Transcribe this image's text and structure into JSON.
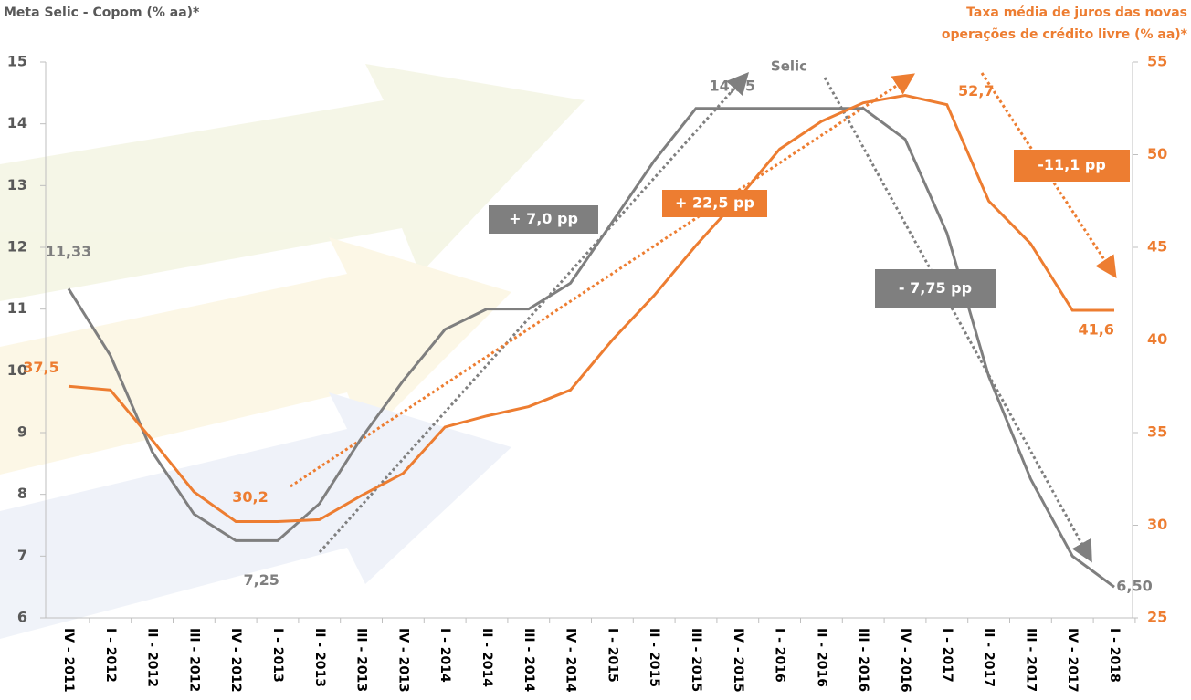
{
  "chart_data": {
    "type": "line",
    "ylabel": "Meta Selic - Copom (% aa)*",
    "y2label": [
      "Taxa média de juros das novas",
      "operações de crédito livre  (% aa)*"
    ],
    "categories": [
      "IV - 2011",
      "I - 2012",
      "II - 2012",
      "III - 2012",
      "IV - 2012",
      "I - 2013",
      "II - 2013",
      "III - 2013",
      "IV - 2013",
      "I - 2014",
      "II - 2014",
      "III - 2014",
      "IV - 2014",
      "I - 2015",
      "II - 2015",
      "III - 2015",
      "IV - 2015",
      "I - 2016",
      "II - 2016",
      "III - 2016",
      "IV - 2016",
      "I - 2017",
      "II - 2017",
      "III - 2017",
      "IV - 2017",
      "I - 2018"
    ],
    "series": [
      {
        "name": "Selic",
        "color": "#7f7f7f",
        "axis": "y",
        "values": [
          11.33,
          10.25,
          8.69,
          7.68,
          7.25,
          7.25,
          7.85,
          8.91,
          9.84,
          10.67,
          11.0,
          11.0,
          11.42,
          12.41,
          13.4,
          14.25,
          14.25,
          14.25,
          14.25,
          14.25,
          13.75,
          12.23,
          9.91,
          8.25,
          7.0,
          6.5
        ],
        "value_labels": [
          "11,33",
          null,
          null,
          null,
          "7,25",
          null,
          null,
          null,
          null,
          null,
          null,
          null,
          null,
          null,
          null,
          null,
          "14,25",
          null,
          null,
          null,
          null,
          null,
          null,
          null,
          null,
          "6,50"
        ]
      },
      {
        "color": "#ed7d31",
        "axis": "y2",
        "values": [
          37.5,
          37.3,
          34.6,
          31.8,
          30.2,
          30.2,
          30.3,
          31.6,
          32.8,
          35.3,
          35.9,
          36.4,
          37.3,
          40.0,
          42.4,
          45.1,
          47.6,
          50.3,
          51.8,
          52.8,
          53.2,
          52.7,
          47.5,
          45.2,
          41.6,
          41.6
        ],
        "value_labels": [
          "37,5",
          null,
          null,
          null,
          null,
          "30,2",
          null,
          null,
          null,
          null,
          null,
          null,
          null,
          null,
          null,
          null,
          null,
          null,
          null,
          null,
          null,
          "52,7",
          null,
          null,
          "41,6",
          null
        ]
      }
    ],
    "ylim": [
      6,
      15
    ],
    "yticks": [
      6,
      7,
      8,
      9,
      10,
      11,
      12,
      13,
      14,
      15
    ],
    "y2lim": [
      25,
      55
    ],
    "y2ticks": [
      25,
      30,
      35,
      40,
      45,
      50,
      55
    ],
    "annotations": [
      {
        "text": "+ 7,0 pp",
        "color": "#7f7f7f"
      },
      {
        "text": "+ 22,5 pp",
        "color": "#ed7d31"
      },
      {
        "text": "- 7,75 pp",
        "color": "#7f7f7f"
      },
      {
        "text": "-11,1 pp",
        "color": "#ed7d31"
      }
    ]
  }
}
